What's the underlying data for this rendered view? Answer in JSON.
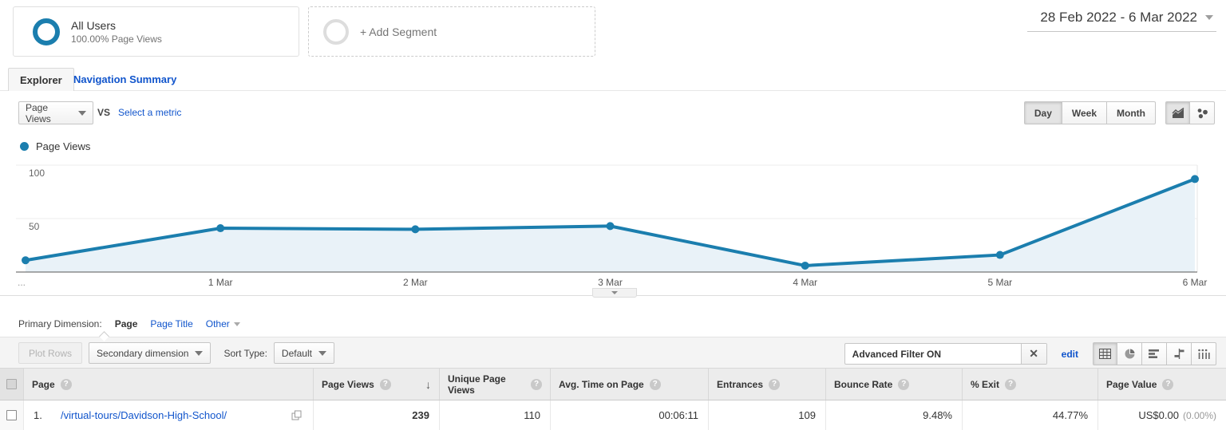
{
  "segments": {
    "all_users_title": "All Users",
    "all_users_subtitle": "100.00% Page Views",
    "add_segment_label": "+ Add Segment"
  },
  "date_range": "28 Feb 2022 - 6 Mar 2022",
  "tabs": {
    "explorer": "Explorer",
    "navigation_summary": "Navigation Summary"
  },
  "metric_bar": {
    "metric_selector": "Page Views",
    "vs_label": "VS",
    "select_metric_label": "Select a metric",
    "granularity": [
      "Day",
      "Week",
      "Month"
    ],
    "active_granularity": "Day"
  },
  "legend": {
    "label": "Page Views"
  },
  "chart_data": {
    "type": "line",
    "title": "Page Views by day",
    "x": [
      "28 Feb",
      "1 Mar",
      "2 Mar",
      "3 Mar",
      "4 Mar",
      "5 Mar",
      "6 Mar"
    ],
    "x_tick_labels": [
      "...",
      "1 Mar",
      "2 Mar",
      "3 Mar",
      "4 Mar",
      "5 Mar",
      "6 Mar"
    ],
    "series": [
      {
        "name": "Page Views",
        "values": [
          11,
          41,
          40,
          43,
          6,
          16,
          87
        ]
      }
    ],
    "ylim": [
      0,
      100
    ],
    "yticks": [
      50,
      100
    ],
    "grid": true,
    "legend_position": "top-left",
    "line_color": "#1b7eae",
    "fill_color": "#e9f2f8",
    "axis_color": "#555555",
    "gridline_color": "#ececec"
  },
  "primary_dimension": {
    "label": "Primary Dimension:",
    "active": "Page",
    "option_page_title": "Page Title",
    "option_other": "Other"
  },
  "table_toolbar": {
    "plot_rows": "Plot Rows",
    "secondary_dimension": "Secondary dimension",
    "sort_type_label": "Sort Type:",
    "sort_type_value": "Default",
    "advanced_filter": "Advanced Filter ON",
    "close_glyph": "✕",
    "edit": "edit"
  },
  "table": {
    "headers": [
      "Page",
      "Page Views",
      "Unique Page Views",
      "Avg. Time on Page",
      "Entrances",
      "Bounce Rate",
      "% Exit",
      "Page Value"
    ],
    "sort_indicator": "↓",
    "help_glyph": "?",
    "rows": [
      {
        "index": "1.",
        "page": "/virtual-tours/Davidson-High-School/",
        "page_views": "239",
        "unique_page_views": "110",
        "avg_time_on_page": "00:06:11",
        "entrances": "109",
        "bounce_rate": "9.48%",
        "exit_pct": "44.77%",
        "page_value": "US$0.00",
        "page_value_pct": "(0.00%)"
      }
    ]
  },
  "colors": {
    "link_blue": "#1155cc",
    "accent_blue": "#1b7eae"
  }
}
